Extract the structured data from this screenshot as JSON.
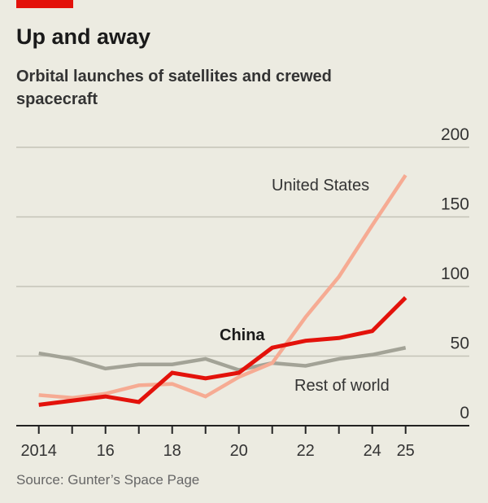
{
  "header": {
    "title": "Up and away",
    "subtitle": "Orbital launches of satellites and crewed spacecraft"
  },
  "source": "Source: Gunter’s Space Page",
  "chart_data": {
    "type": "line",
    "title": "Up and away",
    "subtitle": "Orbital launches of satellites and crewed spacecraft",
    "x": [
      2014,
      2015,
      2016,
      2017,
      2018,
      2019,
      2020,
      2021,
      2022,
      2023,
      2024,
      2025
    ],
    "x_tick_values": [
      2014,
      2016,
      2018,
      2020,
      2022,
      2024,
      2025
    ],
    "x_tick_labels": [
      "2014",
      "16",
      "18",
      "20",
      "22",
      "24",
      "25"
    ],
    "y_ticks": [
      0,
      50,
      100,
      150,
      200
    ],
    "y_tick_labels": [
      "0",
      "50",
      "100",
      "150",
      "200"
    ],
    "ylim": [
      0,
      200
    ],
    "y_axis_side": "right",
    "grid": true,
    "series": [
      {
        "name": "Rest of world",
        "color": "#a3a397",
        "values": [
          52,
          48,
          41,
          44,
          44,
          48,
          40,
          45,
          43,
          48,
          51,
          56
        ]
      },
      {
        "name": "United States",
        "color": "#f6ab93",
        "values": [
          22,
          20,
          23,
          29,
          30,
          21,
          35,
          45,
          78,
          107,
          144,
          180
        ]
      },
      {
        "name": "China",
        "color": "#e3120b",
        "values": [
          15,
          18,
          21,
          17,
          38,
          34,
          38,
          56,
          61,
          63,
          68,
          92
        ]
      }
    ]
  }
}
